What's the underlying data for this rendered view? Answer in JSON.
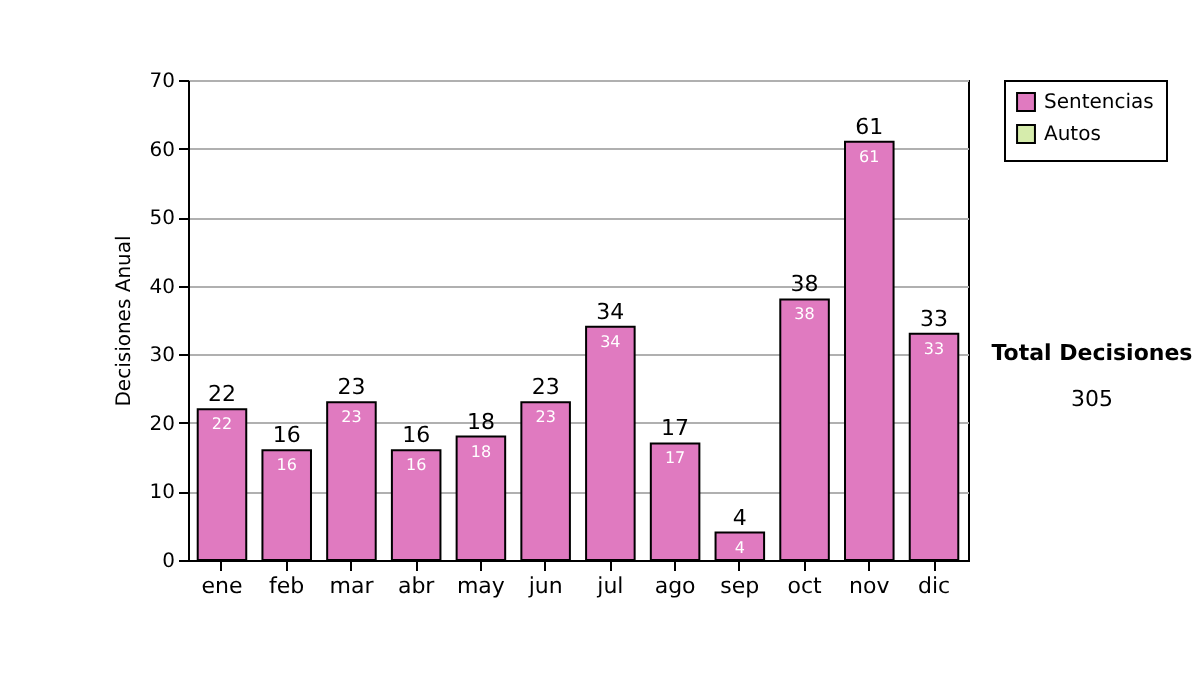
{
  "chart_data": {
    "type": "bar",
    "ylabel": "Decisiones Anual",
    "categories": [
      "ene",
      "feb",
      "mar",
      "abr",
      "may",
      "jun",
      "jul",
      "ago",
      "sep",
      "oct",
      "nov",
      "dic"
    ],
    "series": [
      {
        "name": "Sentencias",
        "color": "#e07ac0",
        "values": [
          22,
          16,
          23,
          16,
          18,
          23,
          34,
          17,
          4,
          38,
          61,
          33
        ]
      },
      {
        "name": "Autos",
        "color": "#d6ecac",
        "values": [
          null,
          null,
          null,
          null,
          null,
          null,
          null,
          null,
          null,
          null,
          null,
          null
        ]
      }
    ],
    "stacked": true,
    "data_labels": true,
    "totals": [
      "22",
      "16",
      "23",
      "16",
      "18",
      "23",
      "34",
      "17",
      "4",
      "38",
      "61",
      "33"
    ],
    "ylim": [
      0,
      70
    ],
    "yticks": [
      0,
      10,
      20,
      30,
      40,
      50,
      60,
      70
    ],
    "grid": "y",
    "legend": "right",
    "annotations": [
      "Total Decisiones",
      "305"
    ]
  }
}
